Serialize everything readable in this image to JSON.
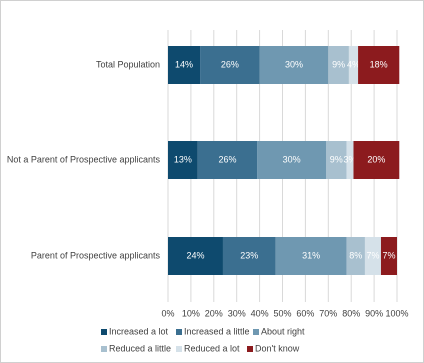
{
  "chart_data": {
    "type": "stacked-barh",
    "categories": [
      "Total Population",
      "Not a Parent of Prospective applicants",
      "Parent of Prospective applicants"
    ],
    "series": [
      {
        "name": "Increased a lot",
        "color": "#0e4a6e",
        "values": [
          14,
          13,
          24
        ],
        "value_labels": [
          "14%",
          "13%",
          "24%"
        ]
      },
      {
        "name": "Increased a little",
        "color": "#3b6f90",
        "values": [
          26,
          26,
          23
        ],
        "value_labels": [
          "26%",
          "26%",
          "23%"
        ]
      },
      {
        "name": "About right",
        "color": "#6f98b1",
        "values": [
          30,
          30,
          31
        ],
        "value_labels": [
          "30%",
          "30%",
          "31%"
        ]
      },
      {
        "name": "Reduced a little",
        "color": "#a8c0cf",
        "values": [
          9,
          9,
          8
        ],
        "value_labels": [
          "9%",
          "9%",
          "8%"
        ]
      },
      {
        "name": "Reduced a lot",
        "color": "#d5e1e9",
        "values": [
          4,
          3,
          7
        ],
        "value_labels": [
          "4%",
          "3%",
          "7%"
        ]
      },
      {
        "name": "Don't know",
        "color": "#8c1b1e",
        "values": [
          18,
          20,
          7
        ],
        "value_labels": [
          "18%",
          "20%",
          "7%"
        ]
      }
    ],
    "xlim": [
      0,
      100
    ],
    "xticks": [
      {
        "value": 0,
        "label": "0%"
      },
      {
        "value": 10,
        "label": "10%"
      },
      {
        "value": 20,
        "label": "20%"
      },
      {
        "value": 30,
        "label": "30%"
      },
      {
        "value": 40,
        "label": "40%"
      },
      {
        "value": 50,
        "label": "50%"
      },
      {
        "value": 60,
        "label": "60%"
      },
      {
        "value": 70,
        "label": "70%"
      },
      {
        "value": 80,
        "label": "80%"
      },
      {
        "value": 90,
        "label": "90%"
      },
      {
        "value": 100,
        "label": "100%"
      }
    ],
    "grid": true
  }
}
